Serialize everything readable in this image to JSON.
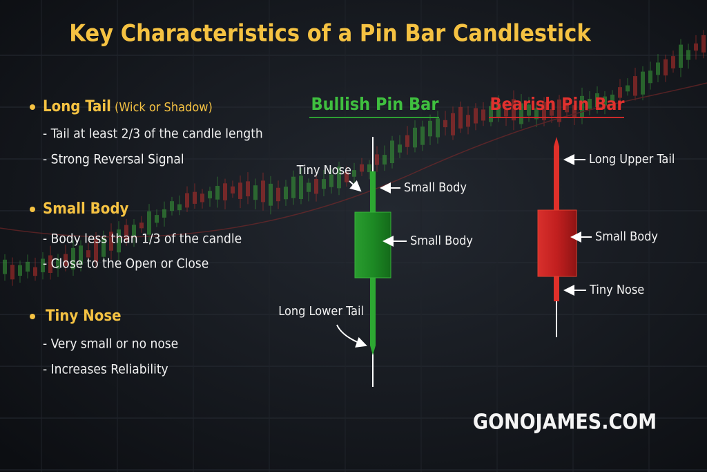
{
  "title": "Key Characteristics of a Pin Bar Candlestick",
  "sections": [
    {
      "heading": "Long Tail",
      "note": "(Wick or Shadow)",
      "items": [
        "- Tail at least 2/3 of the candle length",
        "- Strong Reversal Signal"
      ]
    },
    {
      "heading": "Small Body",
      "items": [
        "- Body less than  1/3 of the candle",
        "- Close to the Open or Close"
      ]
    },
    {
      "heading": "Tiny Nose",
      "items": [
        "- Very small or no nose",
        "- Increases Reliability"
      ]
    }
  ],
  "bullish": {
    "title": "Bullish Pin Bar",
    "labels": [
      "Tiny Nose",
      "Small Body",
      "Small Body",
      "Long Lower Tail"
    ]
  },
  "bearish": {
    "title": "Bearish Pin Bar",
    "labels": [
      "Long Upper Tail",
      "Small Body",
      "Tiny Nose"
    ]
  },
  "watermark": "GONOJAMES.COM"
}
